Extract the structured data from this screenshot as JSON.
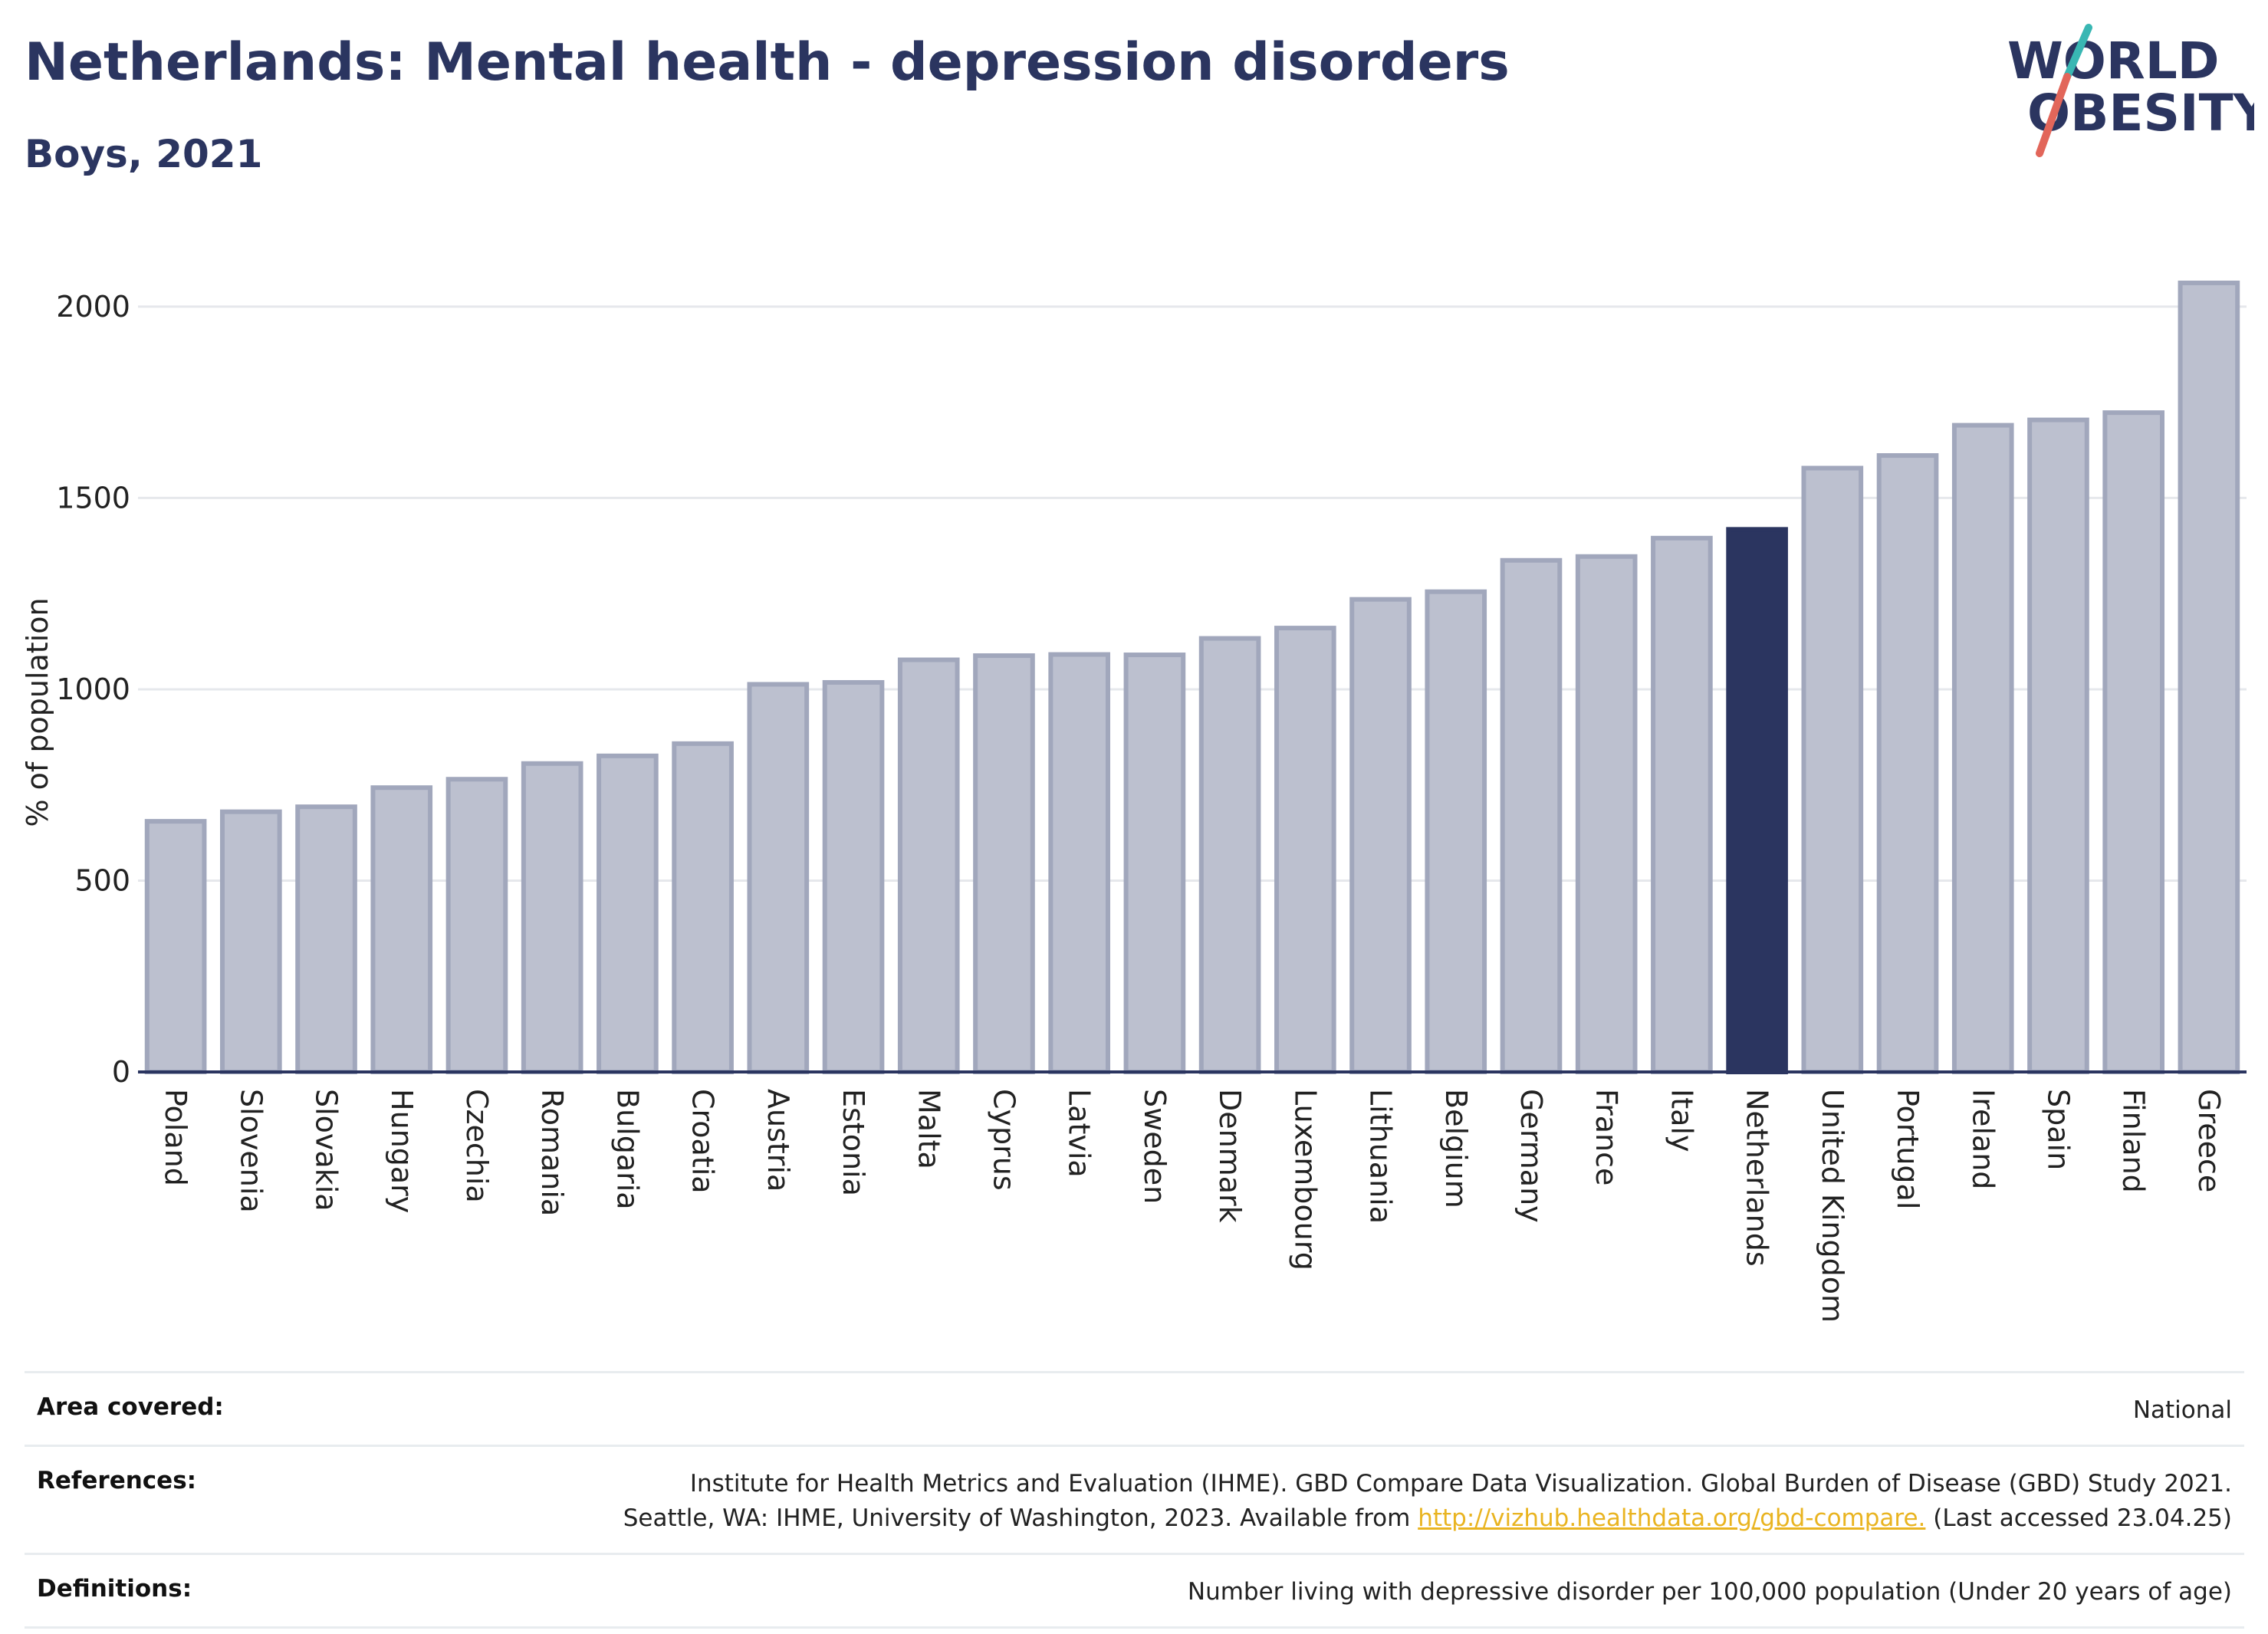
{
  "header": {
    "title": "Netherlands: Mental health - depression disorders",
    "subtitle": "Boys, 2021"
  },
  "logo": {
    "line1": "WORLD",
    "line2": "OBESITY",
    "colors": {
      "text": "#2b3560",
      "slash_teal": "#39b7b3",
      "slash_red": "#e2665a"
    }
  },
  "chart_data": {
    "type": "bar",
    "title": "",
    "xlabel": "",
    "ylabel": "% of population",
    "ylim": [
      0,
      2100
    ],
    "yticks": [
      0,
      500,
      1000,
      1500,
      2000
    ],
    "grid": true,
    "categories": [
      "Poland",
      "Slovenia",
      "Slovakia",
      "Hungary",
      "Czechia",
      "Romania",
      "Bulgaria",
      "Croatia",
      "Austria",
      "Estonia",
      "Malta",
      "Cyprus",
      "Latvia",
      "Sweden",
      "Denmark",
      "Luxembourg",
      "Lithuania",
      "Belgium",
      "Germany",
      "France",
      "Italy",
      "Netherlands",
      "United Kingdom",
      "Portugal",
      "Ireland",
      "Spain",
      "Finland",
      "Greece"
    ],
    "values": [
      655,
      680,
      693,
      743,
      765,
      806,
      826,
      858,
      1013,
      1018,
      1077,
      1088,
      1091,
      1090,
      1133,
      1160,
      1235,
      1255,
      1337,
      1347,
      1395,
      1418,
      1578,
      1611,
      1690,
      1704,
      1723,
      2062
    ],
    "highlight": "Netherlands",
    "colors": {
      "bar": "#bcc0cf",
      "bar_edge": "#a1a7bc",
      "highlight": "#2b3560",
      "grid": "#e6e8ec",
      "axis": "#2b3560"
    }
  },
  "footer": {
    "area_label": "Area covered:",
    "area_value": "National",
    "references_label": "References:",
    "references_line1": "Institute for Health Metrics and Evaluation (IHME). GBD Compare Data Visualization. Global Burden of Disease (GBD) Study 2021.",
    "references_line2_pre": "Seattle, WA: IHME, University of Washington, 2023. Available from ",
    "references_link": "http://vizhub.healthdata.org/gbd-compare.",
    "references_line2_post": " (Last accessed 23.04.25)",
    "definitions_label": "Definitions:",
    "definitions_value": "Number living with depressive disorder per 100,000 population (Under 20 years of age)"
  }
}
